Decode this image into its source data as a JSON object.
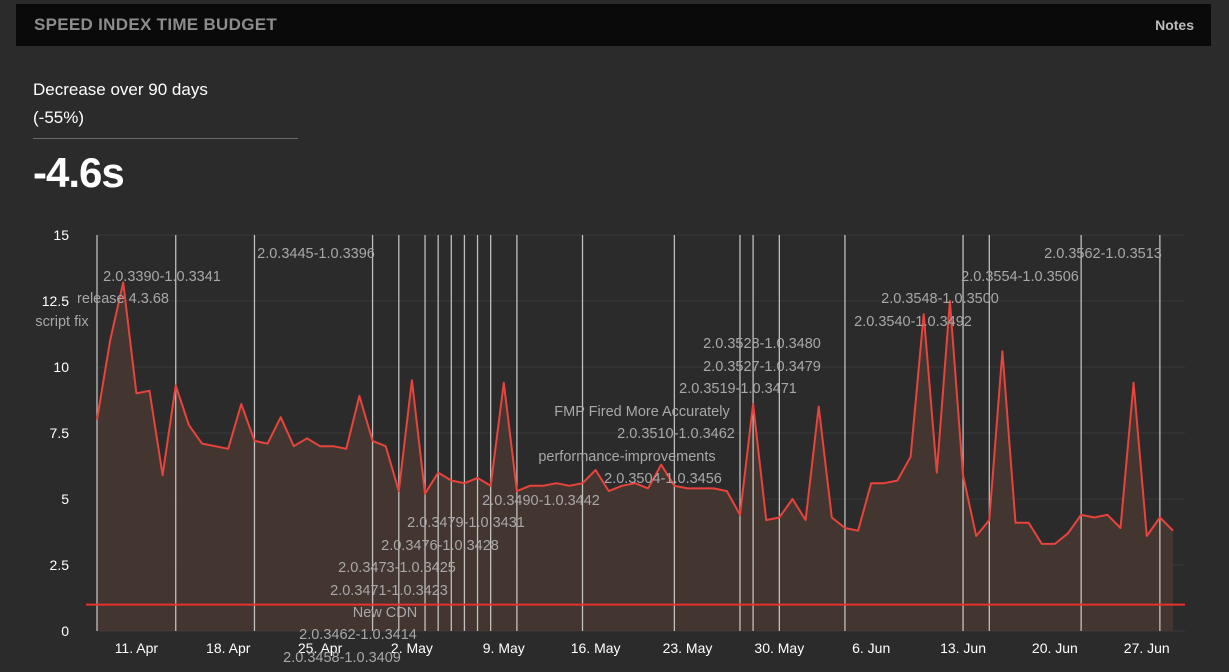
{
  "header": {
    "title": "SPEED INDEX TIME BUDGET",
    "notes_label": "Notes"
  },
  "summary": {
    "label": "Decrease over 90 days",
    "percent": "(-55%)",
    "value": "-4.6s"
  },
  "colors": {
    "line": "#e8433c",
    "area": "#453730",
    "budget": "#e8312c",
    "annotation_line": "#d8d8d8"
  },
  "chart_data": {
    "type": "area",
    "title": "",
    "xlabel": "",
    "ylabel": "",
    "ylim": [
      0,
      15
    ],
    "y_ticks": [
      "0",
      "2.5",
      "5",
      "7.5",
      "10",
      "12.5",
      "15"
    ],
    "x_range": [
      "2019-04-08",
      "2019-06-29"
    ],
    "x_ticks": [
      {
        "date": "2019-04-11",
        "label": "11. Apr"
      },
      {
        "date": "2019-04-18",
        "label": "18. Apr"
      },
      {
        "date": "2019-04-25",
        "label": "25. Apr"
      },
      {
        "date": "2019-05-02",
        "label": "2. May"
      },
      {
        "date": "2019-05-09",
        "label": "9. May"
      },
      {
        "date": "2019-05-16",
        "label": "16. May"
      },
      {
        "date": "2019-05-23",
        "label": "23. May"
      },
      {
        "date": "2019-05-30",
        "label": "30. May"
      },
      {
        "date": "2019-06-06",
        "label": "6. Jun"
      },
      {
        "date": "2019-06-13",
        "label": "13. Jun"
      },
      {
        "date": "2019-06-20",
        "label": "20. Jun"
      },
      {
        "date": "2019-06-27",
        "label": "27. Jun"
      }
    ],
    "budget": 1.0,
    "grid": true,
    "legend": "none",
    "series": [
      {
        "x": [
          "2019-04-08",
          "2019-04-09",
          "2019-04-10",
          "2019-04-11",
          "2019-04-12",
          "2019-04-13",
          "2019-04-14",
          "2019-04-15",
          "2019-04-16",
          "2019-04-17",
          "2019-04-18",
          "2019-04-19",
          "2019-04-20",
          "2019-04-21",
          "2019-04-22",
          "2019-04-23",
          "2019-04-24",
          "2019-04-25",
          "2019-04-26",
          "2019-04-27",
          "2019-04-28",
          "2019-04-29",
          "2019-04-30",
          "2019-05-01",
          "2019-05-02",
          "2019-05-03",
          "2019-05-04",
          "2019-05-05",
          "2019-05-06",
          "2019-05-07",
          "2019-05-08",
          "2019-05-09",
          "2019-05-10",
          "2019-05-11",
          "2019-05-12",
          "2019-05-13",
          "2019-05-14",
          "2019-05-15",
          "2019-05-16",
          "2019-05-17",
          "2019-05-18",
          "2019-05-19",
          "2019-05-20",
          "2019-05-21",
          "2019-05-22",
          "2019-05-23",
          "2019-05-24",
          "2019-05-25",
          "2019-05-26",
          "2019-05-27",
          "2019-05-28",
          "2019-05-29",
          "2019-05-30",
          "2019-05-31",
          "2019-06-01",
          "2019-06-02",
          "2019-06-03",
          "2019-06-04",
          "2019-06-05",
          "2019-06-06",
          "2019-06-07",
          "2019-06-08",
          "2019-06-09",
          "2019-06-10",
          "2019-06-11",
          "2019-06-12",
          "2019-06-13",
          "2019-06-14",
          "2019-06-15",
          "2019-06-16",
          "2019-06-17",
          "2019-06-18",
          "2019-06-19",
          "2019-06-20",
          "2019-06-21",
          "2019-06-22",
          "2019-06-23",
          "2019-06-24",
          "2019-06-25",
          "2019-06-26",
          "2019-06-27",
          "2019-06-28",
          "2019-06-29"
        ],
        "values": [
          8.0,
          11.0,
          13.2,
          9.0,
          9.1,
          5.9,
          9.3,
          7.8,
          7.1,
          7.0,
          6.9,
          8.6,
          7.2,
          7.1,
          8.1,
          7.0,
          7.3,
          7.0,
          7.0,
          6.9,
          8.9,
          7.2,
          7.0,
          5.3,
          9.5,
          5.2,
          6.0,
          5.7,
          5.6,
          5.8,
          5.5,
          9.4,
          5.3,
          5.5,
          5.5,
          5.6,
          5.5,
          5.6,
          6.1,
          5.3,
          5.5,
          5.6,
          5.4,
          6.3,
          5.5,
          5.4,
          5.4,
          5.4,
          5.3,
          4.4,
          8.6,
          4.2,
          4.3,
          5.0,
          4.2,
          8.5,
          4.3,
          3.9,
          3.8,
          5.6,
          5.6,
          5.7,
          6.6,
          12.0,
          6.0,
          12.5,
          5.9,
          3.6,
          4.2,
          10.6,
          4.1,
          4.1,
          3.3,
          3.3,
          3.7,
          4.4,
          4.3,
          4.4,
          3.9,
          9.4,
          3.6,
          4.3,
          3.8
        ]
      }
    ],
    "annotation_lines": [
      "2019-04-08",
      "2019-04-14",
      "2019-04-20",
      "2019-04-29",
      "2019-05-01",
      "2019-05-03",
      "2019-05-04",
      "2019-05-05",
      "2019-05-06",
      "2019-05-07",
      "2019-05-08",
      "2019-05-10",
      "2019-05-15",
      "2019-05-22",
      "2019-05-27",
      "2019-05-28",
      "2019-05-30",
      "2019-06-04",
      "2019-06-13",
      "2019-06-15",
      "2019-06-22",
      "2019-06-28"
    ],
    "annotations": [
      "2.0.3445-1.0.3396",
      "2.0.3390-1.0.3341",
      "release 4.3.68",
      "script fix",
      "2.0.3562-1.0.3513",
      "2.0.3554-1.0.3506",
      "2.0.3548-1.0.3500",
      "2.0.3540-1.0.3492",
      "2.0.3528-1.0.3480",
      "2.0.3527-1.0.3479",
      "2.0.3519-1.0.3471",
      "FMP Fired More Accurately",
      "2.0.3510-1.0.3462",
      "performance-improvements",
      "2.0.3504-1.0.3456",
      "2.0.3490-1.0.3442",
      "2.0.3479-1.0.3431",
      "2.0.3476-1.0.3428",
      "2.0.3473-1.0.3425",
      "2.0.3471-1.0.3423",
      "New CDN",
      "2.0.3462-1.0.3414",
      "2.0.3458-1.0.3409"
    ]
  }
}
